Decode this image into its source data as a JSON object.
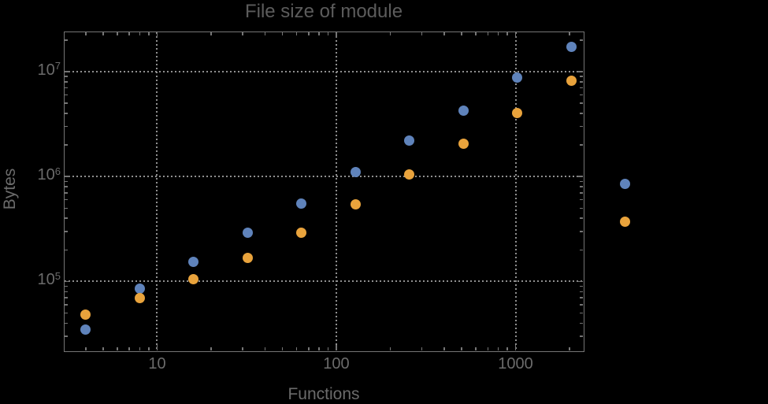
{
  "chart_data": {
    "type": "scatter",
    "title": "File size of module",
    "xlabel": "Functions",
    "ylabel": "Bytes",
    "x_scale": "log",
    "y_scale": "log",
    "xlim": [
      3.046,
      2375
    ],
    "ylim": [
      22000,
      23700000
    ],
    "x_ticks": [
      10,
      100,
      1000
    ],
    "x_tick_labels": [
      "10",
      "100",
      "1000"
    ],
    "y_ticks": [
      100000,
      1000000,
      10000000
    ],
    "y_tick_labels": [
      {
        "base": "10",
        "exp": "5"
      },
      {
        "base": "10",
        "exp": "6"
      },
      {
        "base": "10",
        "exp": "7"
      }
    ],
    "grid": "dotted",
    "legend": "none",
    "marker_diameter_px": 13,
    "clip_points_to_frame": false,
    "series": [
      {
        "name": "series-blue",
        "color": "#5F83BB",
        "x": [
          4,
          8,
          16,
          32,
          64,
          128,
          256,
          512,
          1024,
          2048,
          4096
        ],
        "y": [
          34500,
          86000,
          153000,
          290000,
          548000,
          1100000,
          2200000,
          4250000,
          8700000,
          17100000,
          845000
        ]
      },
      {
        "name": "series-orange",
        "color": "#E9A33C",
        "x": [
          4,
          8,
          16,
          32,
          64,
          128,
          256,
          512,
          1024,
          2048,
          4096
        ],
        "y": [
          48700,
          70000,
          106000,
          169000,
          290000,
          540000,
          1040000,
          2040000,
          4030000,
          8200000,
          369000
        ]
      }
    ]
  },
  "colors": {
    "background": "#000000",
    "frame": "#757575",
    "gridline": "#8f8f8f",
    "title_text": "#5c5c5c",
    "tick_text": "#6b6b6b",
    "axis_label_text": "#6b6b6b"
  }
}
